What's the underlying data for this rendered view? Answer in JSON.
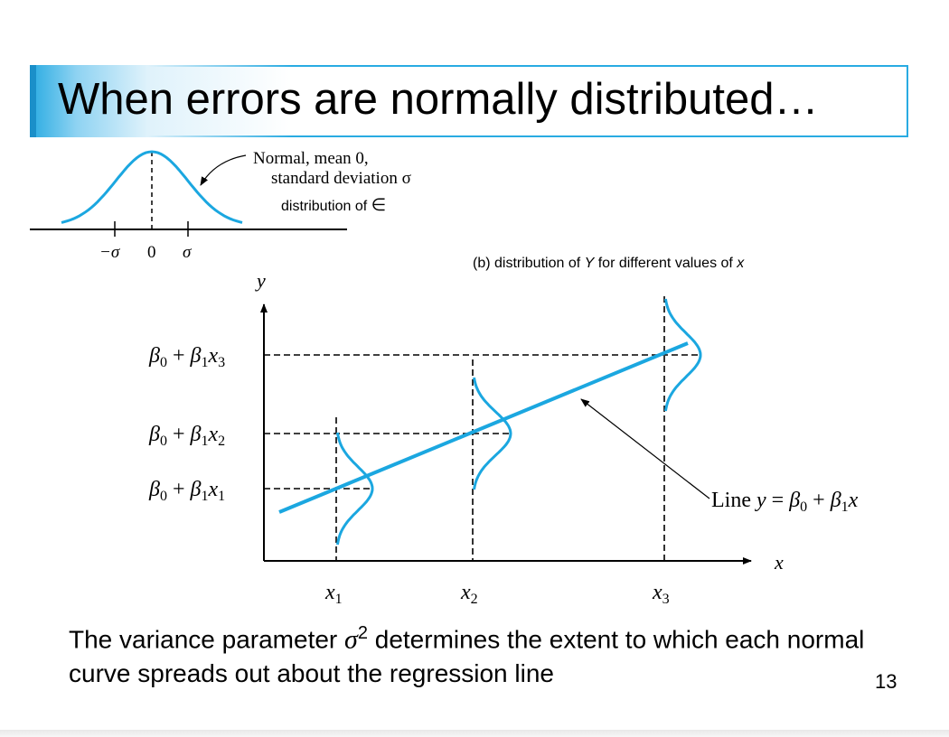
{
  "slide": {
    "title": "When errors are normally distributed…",
    "page_number": "13",
    "caption": {
      "before": "The variance parameter ",
      "sigma": "σ",
      "exponent": "2",
      "after": " determines the extent to which each normal curve spreads out about the regression line"
    }
  },
  "diagram_a": {
    "annotation_line1": "Normal, mean 0,",
    "annotation_line2": "standard deviation σ",
    "sublabel_text": "distribution of ",
    "sublabel_symbol": "∈",
    "tick_neg_sigma": "−σ",
    "tick_zero": "0",
    "tick_sigma": "σ"
  },
  "diagram_b": {
    "caption_pre": "(b) distribution  of ",
    "caption_Y": "Y",
    "caption_mid": " for different values of ",
    "caption_x": "x",
    "y_axis": "y",
    "x_axis": "x",
    "x_ticks": [
      {
        "var": "x",
        "sub": "1"
      },
      {
        "var": "x",
        "sub": "2"
      },
      {
        "var": "x",
        "sub": "3"
      }
    ],
    "y_ticks": [
      {
        "beta": "β",
        "sub0": "0",
        "plus": " + ",
        "sub1": "1",
        "var": "x",
        "subx": "3"
      },
      {
        "beta": "β",
        "sub0": "0",
        "plus": " + ",
        "sub1": "1",
        "var": "x",
        "subx": "2"
      },
      {
        "beta": "β",
        "sub0": "0",
        "plus": " + ",
        "sub1": "1",
        "var": "x",
        "subx": "1"
      }
    ],
    "line_label": {
      "prefix": "Line ",
      "y": "y",
      "eq": " = ",
      "beta": "β",
      "sub0": "0",
      "plus": " + ",
      "sub1": "1",
      "x": "x"
    }
  },
  "colors": {
    "accent": "#29abe2",
    "curve": "#1ba7e0",
    "ink": "#000000"
  }
}
